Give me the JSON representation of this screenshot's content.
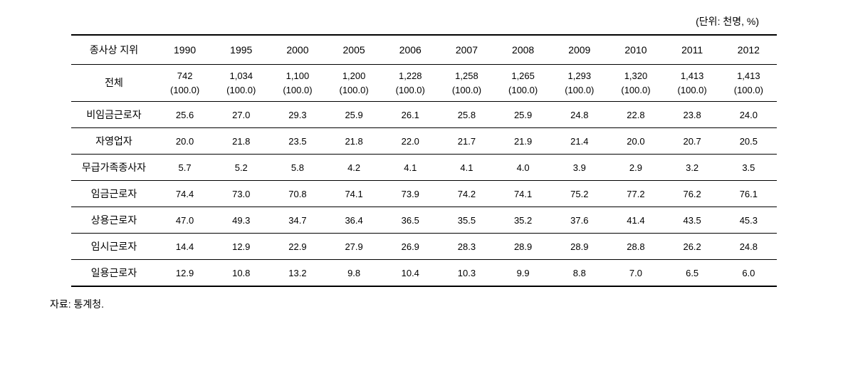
{
  "unit_label": "(단위: 천명, %)",
  "columns": [
    "종사상 지위",
    "1990",
    "1995",
    "2000",
    "2005",
    "2006",
    "2007",
    "2008",
    "2009",
    "2010",
    "2011",
    "2012"
  ],
  "total_row": {
    "label": "전체",
    "values": [
      "742",
      "1,034",
      "1,100",
      "1,200",
      "1,228",
      "1,258",
      "1,265",
      "1,293",
      "1,320",
      "1,413",
      "1,413"
    ],
    "percents": [
      "(100.0)",
      "(100.0)",
      "(100.0)",
      "(100.0)",
      "(100.0)",
      "(100.0)",
      "(100.0)",
      "(100.0)",
      "(100.0)",
      "(100.0)",
      "(100.0)"
    ]
  },
  "rows": [
    {
      "label": "비임금근로자",
      "values": [
        "25.6",
        "27.0",
        "29.3",
        "25.9",
        "26.1",
        "25.8",
        "25.9",
        "24.8",
        "22.8",
        "23.8",
        "24.0"
      ]
    },
    {
      "label": "자영업자",
      "values": [
        "20.0",
        "21.8",
        "23.5",
        "21.8",
        "22.0",
        "21.7",
        "21.9",
        "21.4",
        "20.0",
        "20.7",
        "20.5"
      ]
    },
    {
      "label": "무급가족종사자",
      "values": [
        "5.7",
        "5.2",
        "5.8",
        "4.2",
        "4.1",
        "4.1",
        "4.0",
        "3.9",
        "2.9",
        "3.2",
        "3.5"
      ]
    },
    {
      "label": "임금근로자",
      "values": [
        "74.4",
        "73.0",
        "70.8",
        "74.1",
        "73.9",
        "74.2",
        "74.1",
        "75.2",
        "77.2",
        "76.2",
        "76.1"
      ]
    },
    {
      "label": "상용근로자",
      "values": [
        "47.0",
        "49.3",
        "34.7",
        "36.4",
        "36.5",
        "35.5",
        "35.2",
        "37.6",
        "41.4",
        "43.5",
        "45.3"
      ]
    },
    {
      "label": "임시근로자",
      "values": [
        "14.4",
        "12.9",
        "22.9",
        "27.9",
        "26.9",
        "28.3",
        "28.9",
        "28.9",
        "28.8",
        "26.2",
        "24.8"
      ]
    },
    {
      "label": "일용근로자",
      "values": [
        "12.9",
        "10.8",
        "13.2",
        "9.8",
        "10.4",
        "10.3",
        "9.9",
        "8.8",
        "7.0",
        "6.5",
        "6.0"
      ]
    }
  ],
  "source": "자료: 통계청."
}
